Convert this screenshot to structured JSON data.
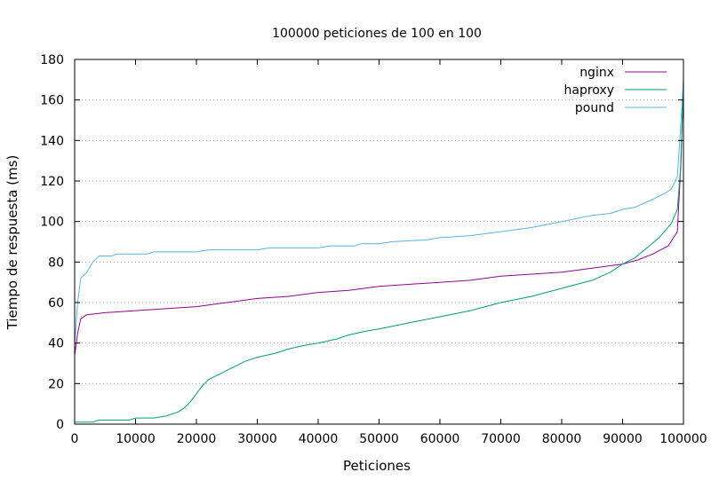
{
  "chart_data": {
    "type": "line",
    "title": "100000 peticiones de 100 en 100",
    "xlabel": "Peticiones",
    "ylabel": "Tiempo de respuesta (ms)",
    "xlim": [
      0,
      100000
    ],
    "ylim": [
      0,
      180
    ],
    "xticks": [
      0,
      10000,
      20000,
      30000,
      40000,
      50000,
      60000,
      70000,
      80000,
      90000,
      100000
    ],
    "yticks": [
      0,
      20,
      40,
      60,
      80,
      100,
      120,
      140,
      160,
      180
    ],
    "grid": "horizontal-dotted",
    "legend_position": "top-right",
    "series": [
      {
        "name": "nginx",
        "color": "#940094",
        "points": [
          [
            0,
            34
          ],
          [
            500,
            45
          ],
          [
            1000,
            52
          ],
          [
            2000,
            54
          ],
          [
            5000,
            55
          ],
          [
            10000,
            56
          ],
          [
            15000,
            57
          ],
          [
            20000,
            58
          ],
          [
            25000,
            60
          ],
          [
            30000,
            62
          ],
          [
            35000,
            63
          ],
          [
            40000,
            65
          ],
          [
            45000,
            66
          ],
          [
            50000,
            68
          ],
          [
            55000,
            69
          ],
          [
            60000,
            70
          ],
          [
            65000,
            71
          ],
          [
            70000,
            73
          ],
          [
            75000,
            74
          ],
          [
            80000,
            75
          ],
          [
            85000,
            77
          ],
          [
            90000,
            79
          ],
          [
            92500,
            81
          ],
          [
            95000,
            84
          ],
          [
            97500,
            88
          ],
          [
            99000,
            95
          ],
          [
            99600,
            130
          ],
          [
            99800,
            150
          ],
          [
            100000,
            160
          ]
        ]
      },
      {
        "name": "haproxy",
        "color": "#009e73",
        "points": [
          [
            0,
            1
          ],
          [
            3000,
            1
          ],
          [
            4000,
            2
          ],
          [
            9000,
            2
          ],
          [
            10000,
            3
          ],
          [
            13000,
            3
          ],
          [
            15000,
            4
          ],
          [
            17000,
            6
          ],
          [
            18000,
            8
          ],
          [
            19000,
            11
          ],
          [
            20000,
            15
          ],
          [
            21000,
            19
          ],
          [
            22000,
            22
          ],
          [
            24000,
            25
          ],
          [
            26000,
            28
          ],
          [
            28000,
            31
          ],
          [
            30000,
            33
          ],
          [
            33000,
            35
          ],
          [
            35000,
            37
          ],
          [
            38000,
            39
          ],
          [
            40000,
            40
          ],
          [
            43000,
            42
          ],
          [
            45000,
            44
          ],
          [
            48000,
            46
          ],
          [
            50000,
            47
          ],
          [
            55000,
            50
          ],
          [
            60000,
            53
          ],
          [
            65000,
            56
          ],
          [
            70000,
            60
          ],
          [
            75000,
            63
          ],
          [
            80000,
            67
          ],
          [
            85000,
            71
          ],
          [
            88000,
            75
          ],
          [
            90000,
            79
          ],
          [
            92000,
            82
          ],
          [
            94000,
            87
          ],
          [
            96000,
            92
          ],
          [
            98000,
            99
          ],
          [
            99000,
            106
          ],
          [
            99500,
            125
          ],
          [
            99800,
            150
          ],
          [
            100000,
            171
          ]
        ]
      },
      {
        "name": "pound",
        "color": "#56b4e9",
        "points": [
          [
            0,
            40
          ],
          [
            500,
            60
          ],
          [
            1000,
            72
          ],
          [
            2000,
            75
          ],
          [
            3000,
            80
          ],
          [
            4000,
            83
          ],
          [
            6000,
            83
          ],
          [
            7000,
            84
          ],
          [
            12000,
            84
          ],
          [
            13000,
            85
          ],
          [
            20000,
            85
          ],
          [
            22000,
            86
          ],
          [
            30000,
            86
          ],
          [
            32000,
            87
          ],
          [
            40000,
            87
          ],
          [
            42000,
            88
          ],
          [
            46000,
            88
          ],
          [
            47000,
            89
          ],
          [
            50000,
            89
          ],
          [
            52000,
            90
          ],
          [
            58000,
            91
          ],
          [
            60000,
            92
          ],
          [
            65000,
            93
          ],
          [
            70000,
            95
          ],
          [
            75000,
            97
          ],
          [
            80000,
            100
          ],
          [
            85000,
            103
          ],
          [
            88000,
            104
          ],
          [
            90000,
            106
          ],
          [
            92000,
            107
          ],
          [
            95000,
            111
          ],
          [
            97000,
            114
          ],
          [
            98000,
            116
          ],
          [
            99000,
            122
          ],
          [
            99500,
            145
          ],
          [
            99800,
            160
          ],
          [
            100000,
            170
          ]
        ]
      }
    ]
  }
}
